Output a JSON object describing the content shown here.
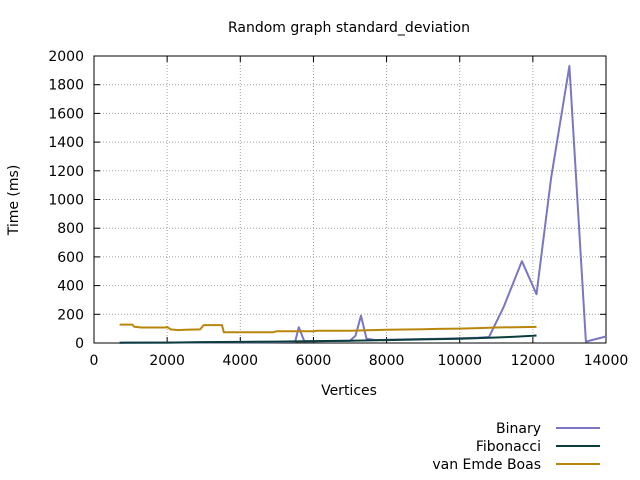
{
  "chart_data": {
    "type": "line",
    "title": "Random graph standard_deviation",
    "xlabel": "Vertices",
    "ylabel": "Time (ms)",
    "xlim": [
      0,
      14000
    ],
    "ylim": [
      0,
      2000
    ],
    "xticks": [
      0,
      2000,
      4000,
      6000,
      8000,
      10000,
      12000,
      14000
    ],
    "yticks": [
      0,
      200,
      400,
      600,
      800,
      1000,
      1200,
      1400,
      1600,
      1800,
      2000
    ],
    "grid": true,
    "legend_position": "bottom-right (below plot)",
    "series": [
      {
        "name": "Binary",
        "color": "#7b76c4",
        "points": [
          [
            700,
            2
          ],
          [
            1000,
            2
          ],
          [
            2000,
            3
          ],
          [
            3000,
            4
          ],
          [
            4000,
            5
          ],
          [
            5000,
            6
          ],
          [
            5500,
            8
          ],
          [
            5600,
            110
          ],
          [
            5750,
            12
          ],
          [
            6000,
            12
          ],
          [
            6500,
            14
          ],
          [
            7000,
            16
          ],
          [
            7150,
            50
          ],
          [
            7300,
            190
          ],
          [
            7450,
            30
          ],
          [
            7700,
            20
          ],
          [
            8000,
            22
          ],
          [
            8500,
            25
          ],
          [
            9000,
            28
          ],
          [
            9500,
            30
          ],
          [
            10000,
            33
          ],
          [
            10500,
            36
          ],
          [
            10800,
            42
          ],
          [
            11200,
            250
          ],
          [
            11700,
            570
          ],
          [
            12100,
            340
          ],
          [
            12500,
            1150
          ],
          [
            13000,
            1930
          ],
          [
            13450,
            10
          ],
          [
            14000,
            45
          ]
        ]
      },
      {
        "name": "Fibonacci",
        "color": "#0b3d3d",
        "points": [
          [
            700,
            2
          ],
          [
            2000,
            3
          ],
          [
            3000,
            6
          ],
          [
            4000,
            8
          ],
          [
            5000,
            10
          ],
          [
            6000,
            13
          ],
          [
            7000,
            16
          ],
          [
            8000,
            20
          ],
          [
            9000,
            25
          ],
          [
            10000,
            30
          ],
          [
            11000,
            38
          ],
          [
            11500,
            44
          ],
          [
            12000,
            50
          ],
          [
            12100,
            52
          ]
        ]
      },
      {
        "name": "van Emde Boas",
        "color": "#b8860b",
        "points": [
          [
            700,
            128
          ],
          [
            1050,
            128
          ],
          [
            1100,
            113
          ],
          [
            1300,
            108
          ],
          [
            1950,
            108
          ],
          [
            2000,
            112
          ],
          [
            2100,
            95
          ],
          [
            2300,
            90
          ],
          [
            2500,
            93
          ],
          [
            2900,
            95
          ],
          [
            3000,
            125
          ],
          [
            3500,
            125
          ],
          [
            3550,
            75
          ],
          [
            4000,
            75
          ],
          [
            4900,
            75
          ],
          [
            5000,
            82
          ],
          [
            6000,
            82
          ],
          [
            6100,
            86
          ],
          [
            7000,
            86
          ],
          [
            7600,
            90
          ],
          [
            8000,
            93
          ],
          [
            9000,
            96
          ],
          [
            9400,
            98
          ],
          [
            10000,
            100
          ],
          [
            10500,
            104
          ],
          [
            11000,
            108
          ],
          [
            12100,
            112
          ]
        ]
      }
    ]
  }
}
